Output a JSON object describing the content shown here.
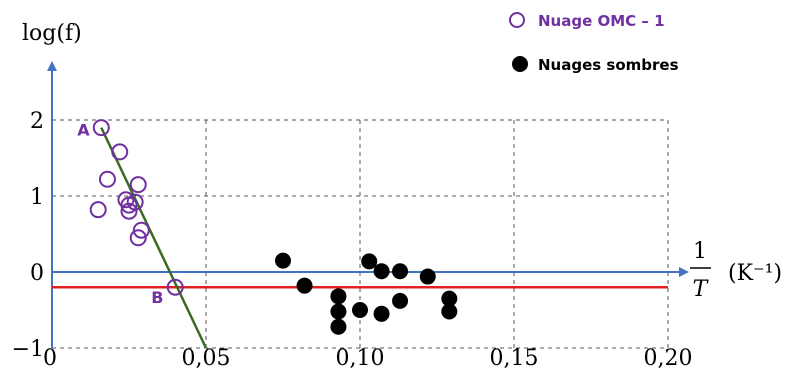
{
  "chart_data": {
    "type": "scatter",
    "ylabel": "log(f)",
    "xlabel_num": "1",
    "xlabel_den": "T",
    "xlabel_unit": "(K⁻¹)",
    "xlim": [
      0,
      0.2
    ],
    "ylim": [
      -1,
      2.6
    ],
    "x_ticks": [
      0,
      0.05,
      0.1,
      0.15,
      0.2
    ],
    "x_tick_labels": [
      "0",
      "0,05",
      "0,10",
      "0,15",
      "0,20"
    ],
    "y_ticks": [
      -1,
      0,
      1,
      2
    ],
    "y_tick_labels": [
      "−1",
      "0",
      "1",
      "2"
    ],
    "grid": true,
    "legend_position": "top-right",
    "series": [
      {
        "name": "Nuage OMC – 1",
        "marker": "hollow-circle",
        "color": "#7030A0",
        "points": [
          [
            0.016,
            1.9
          ],
          [
            0.022,
            1.58
          ],
          [
            0.018,
            1.22
          ],
          [
            0.028,
            1.15
          ],
          [
            0.024,
            0.95
          ],
          [
            0.027,
            0.92
          ],
          [
            0.025,
            0.88
          ],
          [
            0.015,
            0.82
          ],
          [
            0.025,
            0.8
          ],
          [
            0.029,
            0.55
          ],
          [
            0.028,
            0.45
          ],
          [
            0.04,
            -0.2
          ]
        ]
      },
      {
        "name": "Nuages sombres",
        "marker": "filled-circle",
        "color": "#000000",
        "points": [
          [
            0.075,
            0.15
          ],
          [
            0.082,
            -0.18
          ],
          [
            0.093,
            -0.32
          ],
          [
            0.093,
            -0.52
          ],
          [
            0.093,
            -0.72
          ],
          [
            0.1,
            -0.5
          ],
          [
            0.103,
            0.14
          ],
          [
            0.107,
            0.01
          ],
          [
            0.107,
            -0.55
          ],
          [
            0.113,
            0.01
          ],
          [
            0.113,
            -0.38
          ],
          [
            0.122,
            -0.06
          ],
          [
            0.129,
            -0.35
          ],
          [
            0.129,
            -0.52
          ]
        ]
      }
    ],
    "lines": [
      {
        "type": "fit",
        "color": "#3A6B25",
        "from": [
          0.016,
          1.9
        ],
        "to": [
          0.05,
          -1.0
        ]
      },
      {
        "type": "horizontal",
        "color": "#E02020",
        "y": -0.2
      },
      {
        "type": "horizontal",
        "color": "#4472C4",
        "y": 0
      }
    ],
    "annotations": [
      {
        "text": "A",
        "x": 0.016,
        "y": 1.9
      },
      {
        "text": "B",
        "x": 0.04,
        "y": -0.2
      }
    ]
  }
}
